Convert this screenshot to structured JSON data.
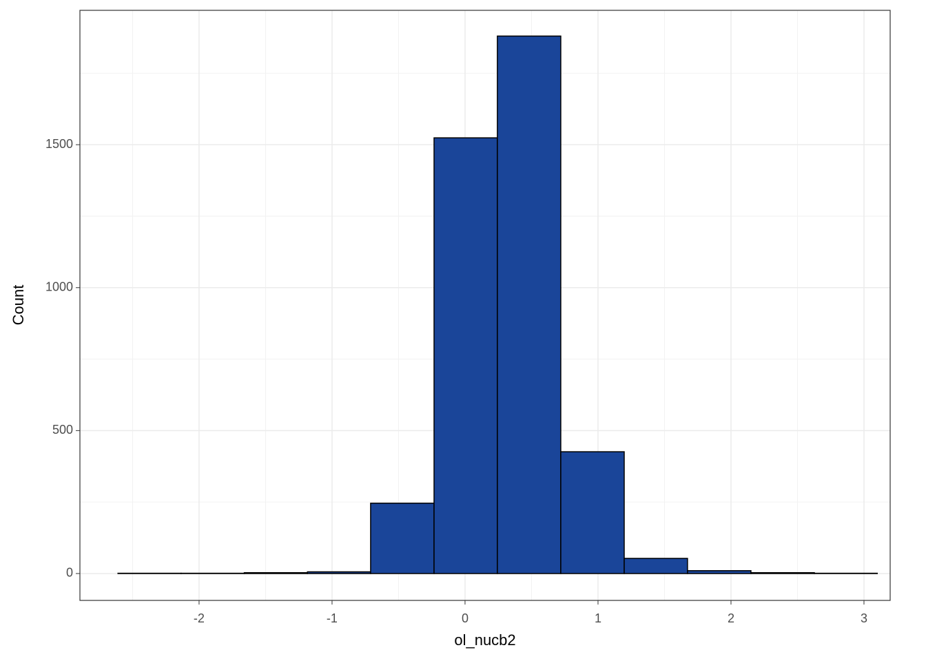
{
  "chart_data": {
    "type": "histogram",
    "x_label": "ol_nucb2",
    "y_label": "Count",
    "bins": [
      -2.61,
      -2.135,
      -1.66,
      -1.185,
      -0.71,
      -0.233,
      0.243,
      0.72,
      1.197,
      1.673,
      2.15,
      2.627,
      3.1
    ],
    "values": [
      1,
      1,
      3,
      6,
      246,
      1524,
      1880,
      426,
      53,
      10,
      3,
      1
    ],
    "color": "#1a4599",
    "edge_color": "#000000",
    "xlim": [
      -2.896,
      3.197
    ],
    "ylim": [
      -94,
      1970
    ],
    "xticks": [
      -2,
      -1,
      0,
      1,
      2,
      3
    ],
    "yticks": [
      0,
      500,
      1000,
      1500
    ],
    "x_minor_ticks": [
      -2.5,
      -1.5,
      -0.5,
      0.5,
      1.5,
      2.5
    ],
    "y_minor_ticks": [
      250,
      750,
      1250,
      1750
    ],
    "grid": true
  }
}
